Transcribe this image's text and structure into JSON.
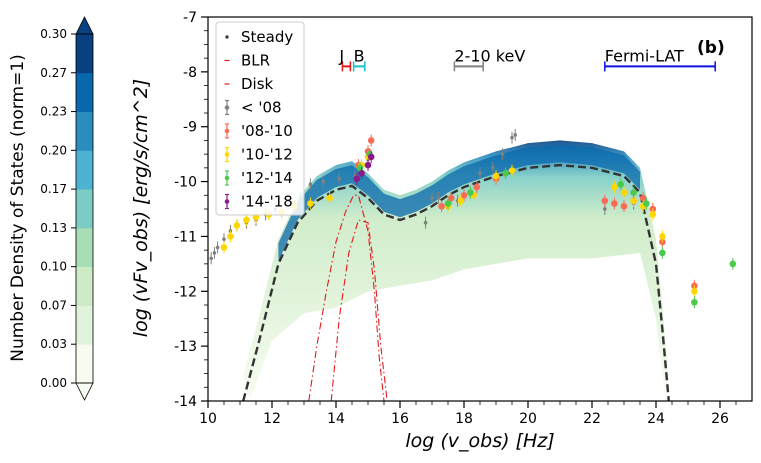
{
  "chart_data": {
    "type": "scatter",
    "panel_label": "(b)",
    "xlabel": "log (v_obs)  [Hz]",
    "ylabel": "log (vFv_obs)  [erg/s/cm^2]",
    "xlim": [
      10,
      27
    ],
    "ylim": [
      -14,
      -7
    ],
    "xticks": [
      10,
      12,
      14,
      16,
      18,
      20,
      22,
      24,
      26
    ],
    "yticks": [
      -14,
      -13,
      -12,
      -11,
      -10,
      -9,
      -8,
      -7
    ],
    "legend_location": "top-left",
    "legend": [
      {
        "label": "Steady",
        "color": "#333333",
        "style": "dash"
      },
      {
        "label": "BLR",
        "color": "#e31a1c",
        "style": "dashdot"
      },
      {
        "label": "Disk",
        "color": "#e31a1c",
        "style": "dashdot"
      },
      {
        "label": "< '08",
        "color": "#808080",
        "style": "errorbar"
      },
      {
        "label": "'08-'10",
        "color": "#fa6a55",
        "style": "errorbar"
      },
      {
        "label": "'10-'12",
        "color": "#ffd700",
        "style": "errorbar"
      },
      {
        "label": "'12-'14",
        "color": "#4cc94c",
        "style": "errorbar"
      },
      {
        "label": "'14-'18",
        "color": "#8b1a8b",
        "style": "errorbar"
      }
    ],
    "bands": [
      {
        "label": "J",
        "range": [
          14.2,
          14.45
        ],
        "y": -7.9,
        "color": "#e31a1c"
      },
      {
        "label": "B",
        "range": [
          14.55,
          14.9
        ],
        "y": -7.9,
        "color": "#17becf"
      },
      {
        "label": "2-10 keV",
        "range": [
          17.7,
          18.6
        ],
        "y": -7.9,
        "color": "#808080"
      },
      {
        "label": "Fermi-LAT",
        "range": [
          22.4,
          25.85
        ],
        "y": -7.9,
        "color": "#1010e0"
      }
    ],
    "series": [
      {
        "name": "Steady",
        "x": [
          11.1,
          11.6,
          12.2,
          12.8,
          13.4,
          14.0,
          14.5,
          15.0,
          15.5,
          16.0,
          16.5,
          17.0,
          17.5,
          18.0,
          19.0,
          20.0,
          21.0,
          22.0,
          23.0,
          23.5,
          24.0,
          24.2,
          24.4
        ],
        "y": [
          -14.0,
          -12.9,
          -11.5,
          -10.75,
          -10.35,
          -10.15,
          -10.08,
          -10.3,
          -10.6,
          -10.7,
          -10.6,
          -10.45,
          -10.25,
          -10.1,
          -9.9,
          -9.75,
          -9.7,
          -9.75,
          -9.9,
          -10.2,
          -11.5,
          -12.7,
          -14.0
        ]
      },
      {
        "name": "BLR",
        "x": [
          13.15,
          13.4,
          13.7,
          14.0,
          14.3,
          14.55,
          14.7,
          15.0,
          15.2,
          15.35,
          15.5
        ],
        "y": [
          -14.0,
          -13.0,
          -12.0,
          -11.1,
          -10.55,
          -10.25,
          -10.25,
          -10.9,
          -12.0,
          -13.2,
          -14.0
        ]
      },
      {
        "name": "Disk",
        "x": [
          13.85,
          14.1,
          14.4,
          14.7,
          15.0,
          15.2,
          15.4,
          15.6
        ],
        "y": [
          -14.0,
          -12.5,
          -11.3,
          -10.7,
          -10.75,
          -11.6,
          -13.0,
          -14.0
        ]
      },
      {
        "name": "< '08",
        "x": [
          10.1,
          10.2,
          10.3,
          10.5,
          10.7,
          10.9,
          11.2,
          11.5,
          11.8,
          12.1,
          12.5,
          12.9,
          13.2,
          13.6,
          14.1,
          14.6,
          15.0,
          16.8,
          17.0,
          17.2,
          17.5,
          17.8,
          18.2,
          18.5,
          18.9,
          19.2,
          19.5,
          19.6,
          22.4,
          23.3
        ],
        "y": [
          -11.4,
          -11.3,
          -11.2,
          -11.05,
          -10.9,
          -10.8,
          -10.75,
          -10.7,
          -10.6,
          -10.5,
          -10.4,
          -10.3,
          -10.05,
          -10.0,
          -9.95,
          -9.9,
          -9.6,
          -10.75,
          -10.3,
          -10.3,
          -10.45,
          -10.35,
          -10.2,
          -9.85,
          -9.75,
          -9.5,
          -9.2,
          -9.15,
          -10.5,
          -10.4
        ]
      },
      {
        "name": "'08-'10",
        "x": [
          14.7,
          15.0,
          15.1,
          17.3,
          17.6,
          18.0,
          18.4,
          19.0,
          22.4,
          22.7,
          23.0,
          23.3,
          23.6,
          23.9,
          24.2,
          25.2
        ],
        "y": [
          -9.7,
          -9.45,
          -9.25,
          -10.45,
          -10.3,
          -10.25,
          -10.1,
          -9.95,
          -10.35,
          -10.4,
          -10.45,
          -10.35,
          -10.3,
          -10.5,
          -11.1,
          -11.9
        ]
      },
      {
        "name": "'10-'12",
        "x": [
          10.5,
          10.7,
          10.9,
          11.2,
          11.5,
          11.9,
          12.3,
          12.7,
          13.2,
          13.8,
          14.8,
          15.0,
          17.5,
          17.9,
          18.3,
          19.0,
          19.5,
          22.7,
          23.0,
          23.3,
          23.6,
          23.9,
          24.2,
          25.2
        ],
        "y": [
          -11.2,
          -11.0,
          -10.8,
          -10.7,
          -10.65,
          -10.6,
          -10.55,
          -10.45,
          -10.4,
          -10.3,
          -9.7,
          -9.55,
          -10.45,
          -10.35,
          -10.25,
          -9.9,
          -9.8,
          -10.1,
          -10.2,
          -10.35,
          -10.45,
          -10.6,
          -11.0,
          -12.0
        ]
      },
      {
        "name": "'12-'14",
        "x": [
          14.75,
          15.05,
          17.5,
          18.2,
          19.3,
          22.9,
          23.3,
          23.7,
          24.2,
          25.2,
          26.4
        ],
        "y": [
          -9.75,
          -9.5,
          -10.4,
          -10.2,
          -9.85,
          -10.05,
          -10.2,
          -10.4,
          -11.3,
          -12.2,
          -11.5
        ]
      },
      {
        "name": "'14-'18",
        "x": [
          14.65,
          14.8,
          15.0,
          15.1
        ],
        "y": [
          -9.95,
          -9.85,
          -9.7,
          -9.55
        ]
      }
    ]
  },
  "colorbar": {
    "label": "Number Density of States (norm=1)",
    "ticks": [
      "0.00",
      "0.03",
      "0.07",
      "0.10",
      "0.13",
      "0.17",
      "0.20",
      "0.23",
      "0.27",
      "0.30"
    ],
    "colors": [
      "#f7fcf0",
      "#e0f3db",
      "#ccebc5",
      "#a8ddb5",
      "#7bccc4",
      "#4eb3d3",
      "#2b8cbe",
      "#0868ac",
      "#084081"
    ],
    "extend_top_color": "#084081",
    "extend_bottom_color": "#f7fcf0"
  }
}
